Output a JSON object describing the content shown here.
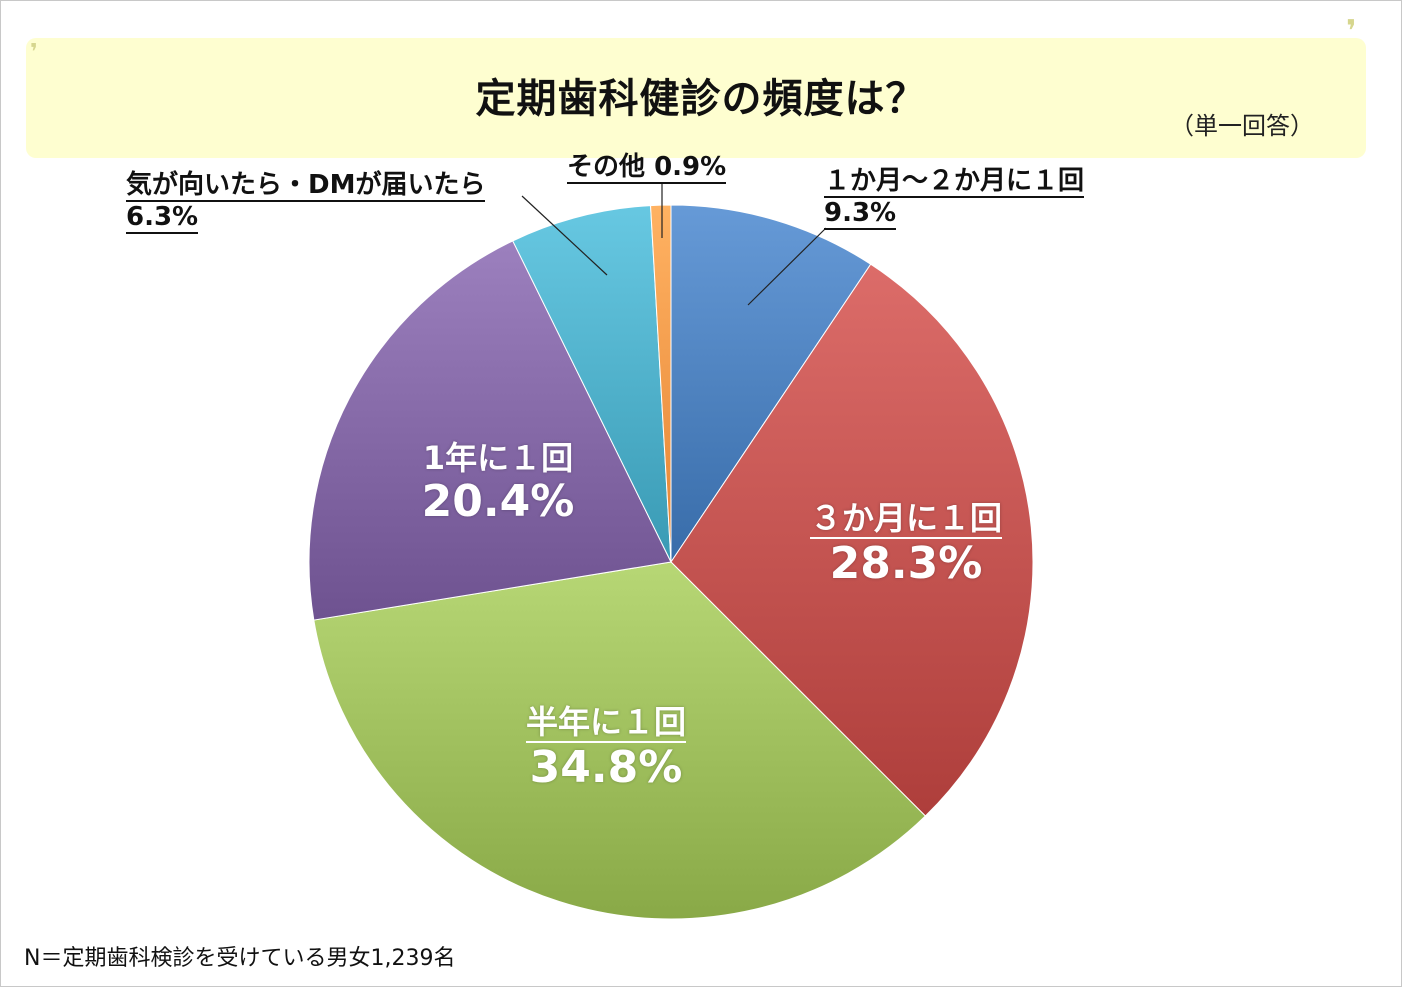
{
  "header": {
    "title": "定期歯科健診の頻度は？",
    "subtitle": "（単一回答）"
  },
  "footnote": "N＝定期歯科検診を受けている男女1,239名",
  "chart_data": {
    "type": "pie",
    "title": "定期歯科健診の頻度は？",
    "slices": [
      {
        "label": "１か月～２か月に１回",
        "value": 9.3,
        "value_label": "9.3%",
        "color": "#4a7ebb"
      },
      {
        "label": "３か月に１回",
        "value": 28.3,
        "value_label": "28.3%",
        "color": "#c0504d"
      },
      {
        "label": "半年に１回",
        "value": 34.8,
        "value_label": "34.8%",
        "color": "#9bbb59"
      },
      {
        "label": "1年に１回",
        "value": 20.4,
        "value_label": "20.4%",
        "color": "#8064a2"
      },
      {
        "label": "気が向いたら・DMが届いたら",
        "value": 6.3,
        "value_label": "6.3%",
        "color": "#4bacc6"
      },
      {
        "label": "その他",
        "value": 0.9,
        "value_label": "0.9%",
        "color": "#f79646"
      }
    ]
  }
}
